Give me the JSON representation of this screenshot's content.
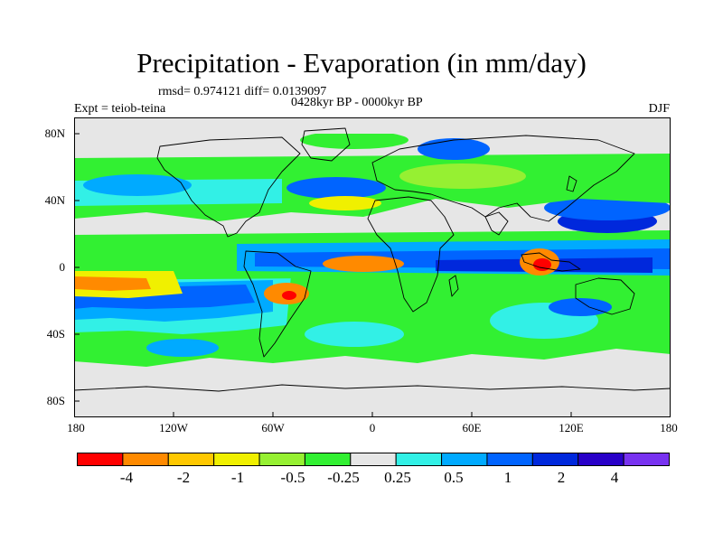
{
  "title": "Precipitation - Evaporation (in mm/day)",
  "stats_line": "rmsd= 0.974121 diff= 0.0139097",
  "period_line": "0428kyr BP - 0000kyr BP",
  "experiment": "Expt = teiob-teina",
  "season": "DJF",
  "y_ticks": [
    "80N",
    "40N",
    "0",
    "40S",
    "80S"
  ],
  "x_ticks": [
    "180",
    "120W",
    "60W",
    "0",
    "60E",
    "120E",
    "180"
  ],
  "colorbar": {
    "colors": [
      "#ff0000",
      "#ff8a00",
      "#ffc800",
      "#f0f000",
      "#96f032",
      "#32f032",
      "#e6e6e6",
      "#32f0e6",
      "#00aaff",
      "#0064ff",
      "#0028dc",
      "#2800c8",
      "#7832f0"
    ],
    "labels": [
      "-4",
      "-2",
      "-1",
      "-0.5",
      "-0.25",
      "0.25",
      "0.5",
      "1",
      "2",
      "4"
    ]
  }
}
